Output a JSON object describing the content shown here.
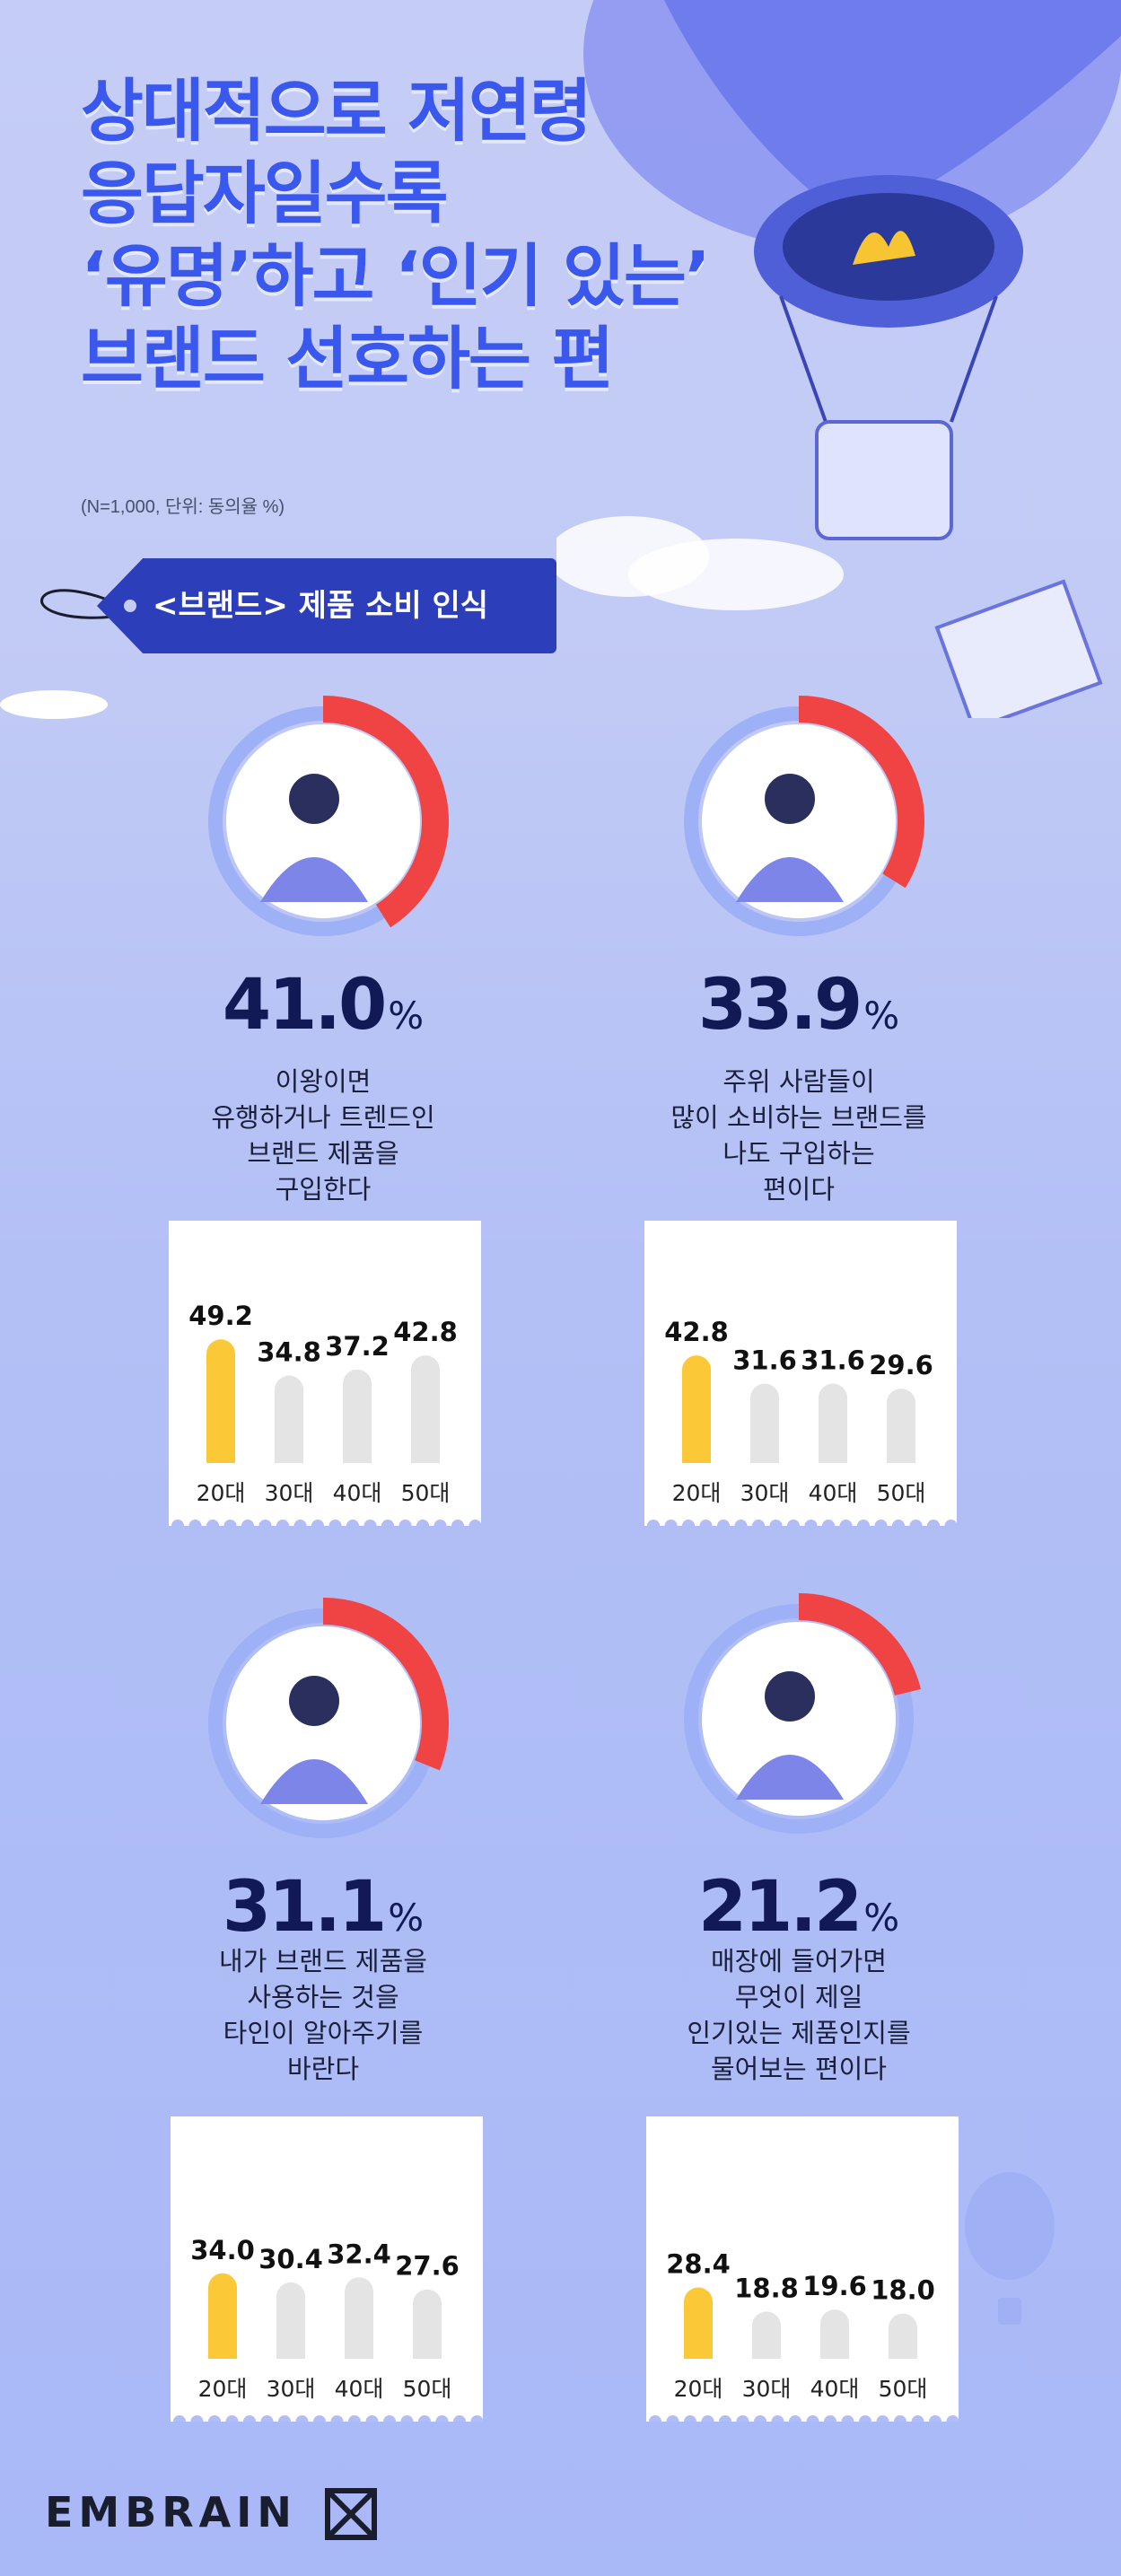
{
  "header": {
    "title_lines": [
      "상대적으로 저연령",
      "응답자일수록",
      "‘유명’하고 ‘인기 있는’",
      "브랜드 선호하는 편"
    ],
    "note": "(N=1,000, 단위: 동의율 %)"
  },
  "section_tag": "<브랜드> 제품 소비 인식",
  "colors": {
    "accent_blue": "#3a57ee",
    "tag_navy": "#2c3eb9",
    "donut_red": "#f04444",
    "bar_highlight": "#fbc937",
    "bar_gray": "#e4e4e4"
  },
  "cards": [
    {
      "pct_value": "41.0",
      "pct_unit": "%",
      "desc_lines": [
        "이왕이면",
        "유행하거나 트렌드인",
        "브랜드 제품을",
        "구입한다"
      ]
    },
    {
      "pct_value": "33.9",
      "pct_unit": "%",
      "desc_lines": [
        "주위 사람들이",
        "많이 소비하는 브랜드를",
        "나도 구입하는",
        "편이다"
      ]
    },
    {
      "pct_value": "31.1",
      "pct_unit": "%",
      "desc_lines": [
        "내가 브랜드 제품을",
        "사용하는 것을",
        "타인이 알아주기를",
        "바란다"
      ]
    },
    {
      "pct_value": "21.2",
      "pct_unit": "%",
      "desc_lines": [
        "매장에 들어가면",
        "무엇이 제일",
        "인기있는 제품인지를",
        "물어보는 편이다"
      ]
    }
  ],
  "chart_data": [
    {
      "type": "pie",
      "values": [
        41.0,
        59.0
      ],
      "labels": [
        "동의율",
        ""
      ]
    },
    {
      "type": "bar",
      "categories": [
        "20대",
        "30대",
        "40대",
        "50대"
      ],
      "values": [
        49.2,
        34.8,
        37.2,
        42.8
      ],
      "value_labels": [
        "49.2",
        "34.8",
        "37.2",
        "42.8"
      ],
      "highlight_index": 0
    },
    {
      "type": "pie",
      "values": [
        33.9,
        66.1
      ],
      "labels": [
        "동의율",
        ""
      ]
    },
    {
      "type": "bar",
      "categories": [
        "20대",
        "30대",
        "40대",
        "50대"
      ],
      "values": [
        42.8,
        31.6,
        31.6,
        29.6
      ],
      "value_labels": [
        "42.8",
        "31.6",
        "31.6",
        "29.6"
      ],
      "highlight_index": 0
    },
    {
      "type": "pie",
      "values": [
        31.1,
        68.9
      ],
      "labels": [
        "동의율",
        ""
      ]
    },
    {
      "type": "bar",
      "categories": [
        "20대",
        "30대",
        "40대",
        "50대"
      ],
      "values": [
        34.0,
        30.4,
        32.4,
        27.6
      ],
      "value_labels": [
        "34.0",
        "30.4",
        "32.4",
        "27.6"
      ],
      "highlight_index": 0
    },
    {
      "type": "pie",
      "values": [
        21.2,
        78.8
      ],
      "labels": [
        "동의율",
        ""
      ]
    },
    {
      "type": "bar",
      "categories": [
        "20대",
        "30대",
        "40대",
        "50대"
      ],
      "values": [
        28.4,
        18.8,
        19.6,
        18.0
      ],
      "value_labels": [
        "28.4",
        "18.8",
        "19.6",
        "18.0"
      ],
      "highlight_index": 0
    }
  ],
  "footer": {
    "logo": "EMBRAIN"
  }
}
